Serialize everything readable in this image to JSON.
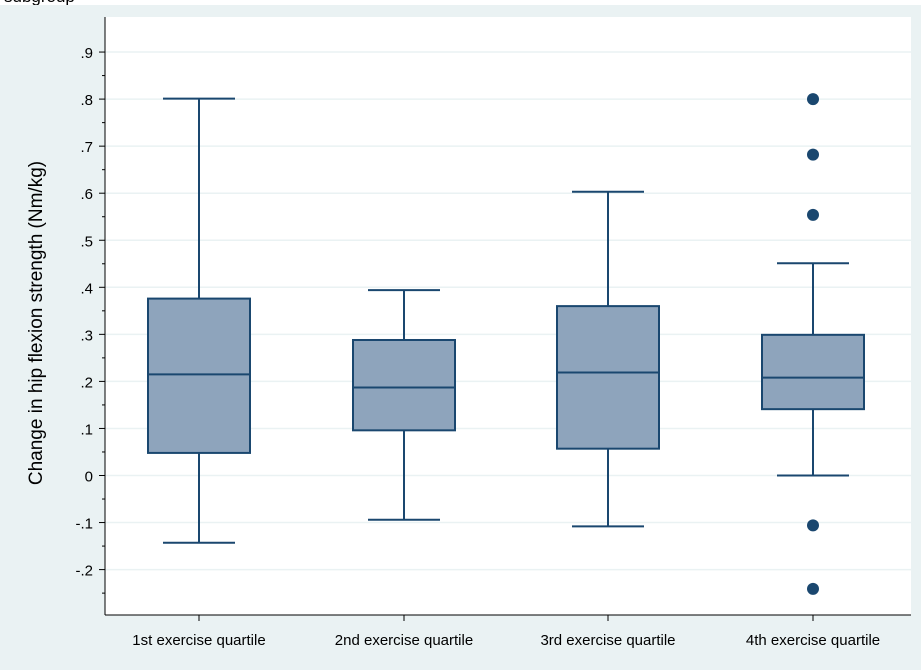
{
  "header_fragment": "subgroup",
  "chart_data": {
    "type": "box",
    "ylabel": "Change in hip flexion strength (Nm/kg)",
    "xlabel": "",
    "ylim": [
      -0.3,
      0.95
    ],
    "yticks": [
      -0.2,
      -0.1,
      0,
      0.1,
      0.2,
      0.3,
      0.4,
      0.5,
      0.6,
      0.7,
      0.8,
      0.9
    ],
    "ytick_labels": [
      "-.2",
      "-.1",
      "0",
      ".1",
      ".2",
      ".3",
      ".4",
      ".5",
      ".6",
      ".7",
      ".8",
      ".9"
    ],
    "grid": true,
    "categories": [
      "1st exercise quartile",
      "2nd exercise quartile",
      "3rd exercise quartile",
      "4th exercise quartile"
    ],
    "boxes": [
      {
        "whisker_low": -0.143,
        "q1": 0.048,
        "median": 0.215,
        "q3": 0.376,
        "whisker_high": 0.801,
        "outliers": []
      },
      {
        "whisker_low": -0.094,
        "q1": 0.096,
        "median": 0.187,
        "q3": 0.288,
        "whisker_high": 0.394,
        "outliers": []
      },
      {
        "whisker_low": -0.108,
        "q1": 0.057,
        "median": 0.219,
        "q3": 0.36,
        "whisker_high": 0.603,
        "outliers": []
      },
      {
        "whisker_low": 0.0,
        "q1": 0.141,
        "median": 0.208,
        "q3": 0.299,
        "whisker_high": 0.451,
        "outliers": [
          0.8,
          0.682,
          0.554,
          -0.106,
          -0.241
        ]
      }
    ],
    "colors": {
      "box_fill": "#8ea4bc",
      "box_line": "#1a476f",
      "outlier": "#1a476f",
      "plot_bg": "#ffffff",
      "outer_bg": "#eaf2f3",
      "grid": "#eaf2f3",
      "axis": "#000000"
    }
  }
}
